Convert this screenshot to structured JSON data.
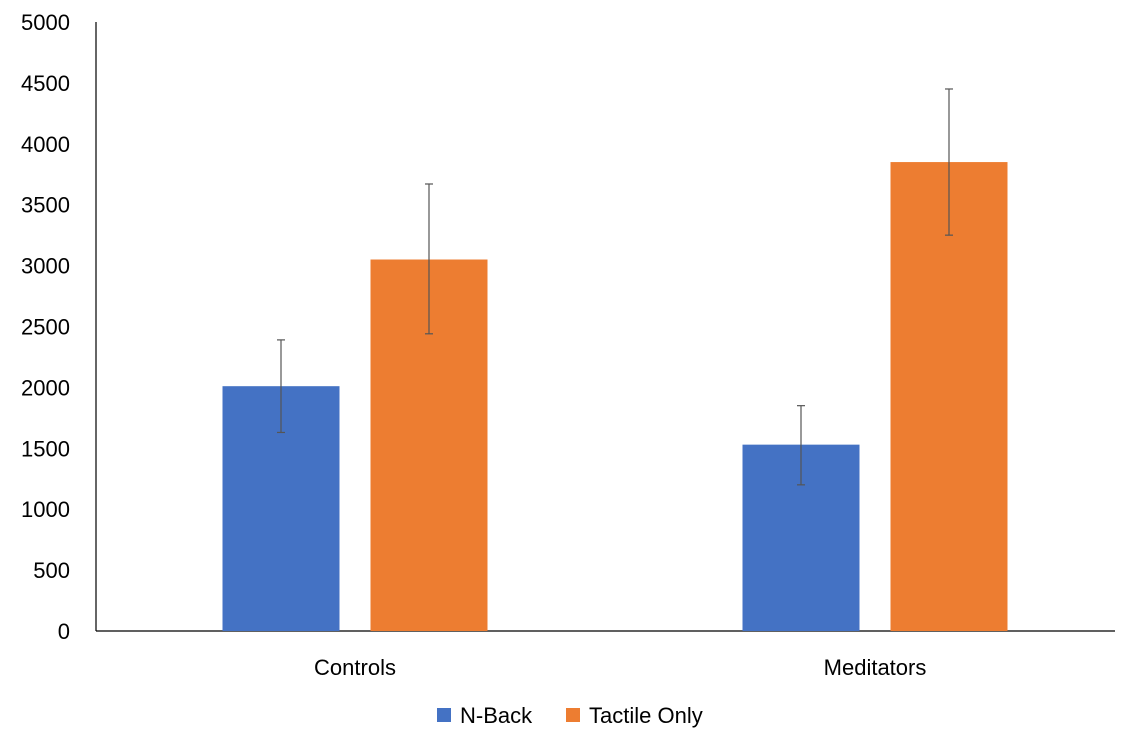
{
  "chart_data": {
    "type": "bar",
    "title": "",
    "xlabel": "",
    "ylabel": "",
    "categories": [
      "Controls",
      "Meditators"
    ],
    "ylim": [
      0,
      5000
    ],
    "yticks": [
      0,
      500,
      1000,
      1500,
      2000,
      2500,
      3000,
      3500,
      4000,
      4500,
      5000
    ],
    "grid": false,
    "legend_position": "bottom",
    "series": [
      {
        "name": "N-Back",
        "color": "#4472C4",
        "values": [
          2010,
          1530
        ],
        "error_low": [
          1630,
          1200
        ],
        "error_high": [
          2390,
          1850
        ]
      },
      {
        "name": "Tactile Only",
        "color": "#ED7D31",
        "values": [
          3050,
          3850
        ],
        "error_low": [
          2440,
          3250
        ],
        "error_high": [
          3670,
          4450
        ]
      }
    ]
  }
}
